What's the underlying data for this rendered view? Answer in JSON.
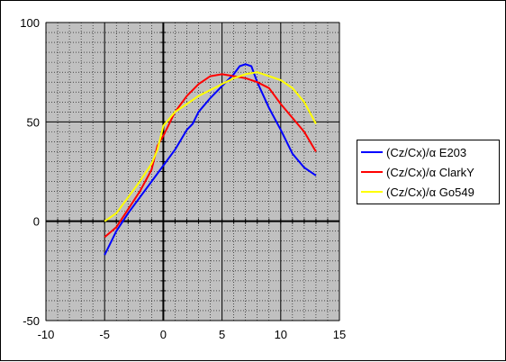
{
  "chart_data": {
    "type": "line",
    "title": "",
    "xlabel": "",
    "ylabel": "",
    "xlim": [
      -10,
      15
    ],
    "ylim": [
      -50,
      100
    ],
    "xticks": [
      -10,
      -5,
      0,
      5,
      10,
      15
    ],
    "yticks": [
      -50,
      0,
      50,
      100
    ],
    "x_minor_step": 1,
    "y_minor_step": 5,
    "plot_background": "#c0c0c0",
    "grid": true,
    "legend_position": "right",
    "series": [
      {
        "name": "(Cz/Cx)/α  E203",
        "color": "#0000ff",
        "points": [
          [
            -5,
            -17
          ],
          [
            -4,
            -5
          ],
          [
            -3,
            4
          ],
          [
            -2,
            12
          ],
          [
            -1,
            20
          ],
          [
            0,
            28
          ],
          [
            1,
            36
          ],
          [
            2,
            46
          ],
          [
            2.5,
            49
          ],
          [
            3,
            55
          ],
          [
            4,
            62
          ],
          [
            5,
            68
          ],
          [
            6,
            74
          ],
          [
            6.5,
            78
          ],
          [
            7,
            79
          ],
          [
            7.5,
            78
          ],
          [
            8,
            70
          ],
          [
            9,
            57
          ],
          [
            10,
            46
          ],
          [
            11,
            34
          ],
          [
            12,
            27
          ],
          [
            13,
            23
          ]
        ]
      },
      {
        "name": "(Cz/Cx)/α  ClarkY",
        "color": "#ff0000",
        "points": [
          [
            -5,
            -8
          ],
          [
            -4,
            -3
          ],
          [
            -3,
            6
          ],
          [
            -2,
            15
          ],
          [
            -1,
            26
          ],
          [
            -0.5,
            38
          ],
          [
            0,
            43
          ],
          [
            1,
            55
          ],
          [
            2,
            63
          ],
          [
            3,
            69
          ],
          [
            4,
            73
          ],
          [
            5,
            74
          ],
          [
            6,
            73
          ],
          [
            7,
            72
          ],
          [
            8,
            70
          ],
          [
            9,
            67
          ],
          [
            10,
            59
          ],
          [
            11,
            52
          ],
          [
            12,
            45
          ],
          [
            13,
            35
          ]
        ]
      },
      {
        "name": "(Cz/Cx)/α  Go549",
        "color": "#ffff00",
        "points": [
          [
            -5,
            0
          ],
          [
            -4,
            4
          ],
          [
            -3,
            12
          ],
          [
            -2,
            20
          ],
          [
            -1,
            29
          ],
          [
            -0.5,
            36
          ],
          [
            0,
            48
          ],
          [
            1,
            55
          ],
          [
            2,
            59
          ],
          [
            3,
            63
          ],
          [
            4,
            66
          ],
          [
            5,
            69
          ],
          [
            6,
            72
          ],
          [
            7,
            74
          ],
          [
            8,
            75
          ],
          [
            9,
            73
          ],
          [
            10,
            71
          ],
          [
            11,
            67
          ],
          [
            12,
            60
          ],
          [
            13,
            49
          ]
        ]
      }
    ]
  }
}
